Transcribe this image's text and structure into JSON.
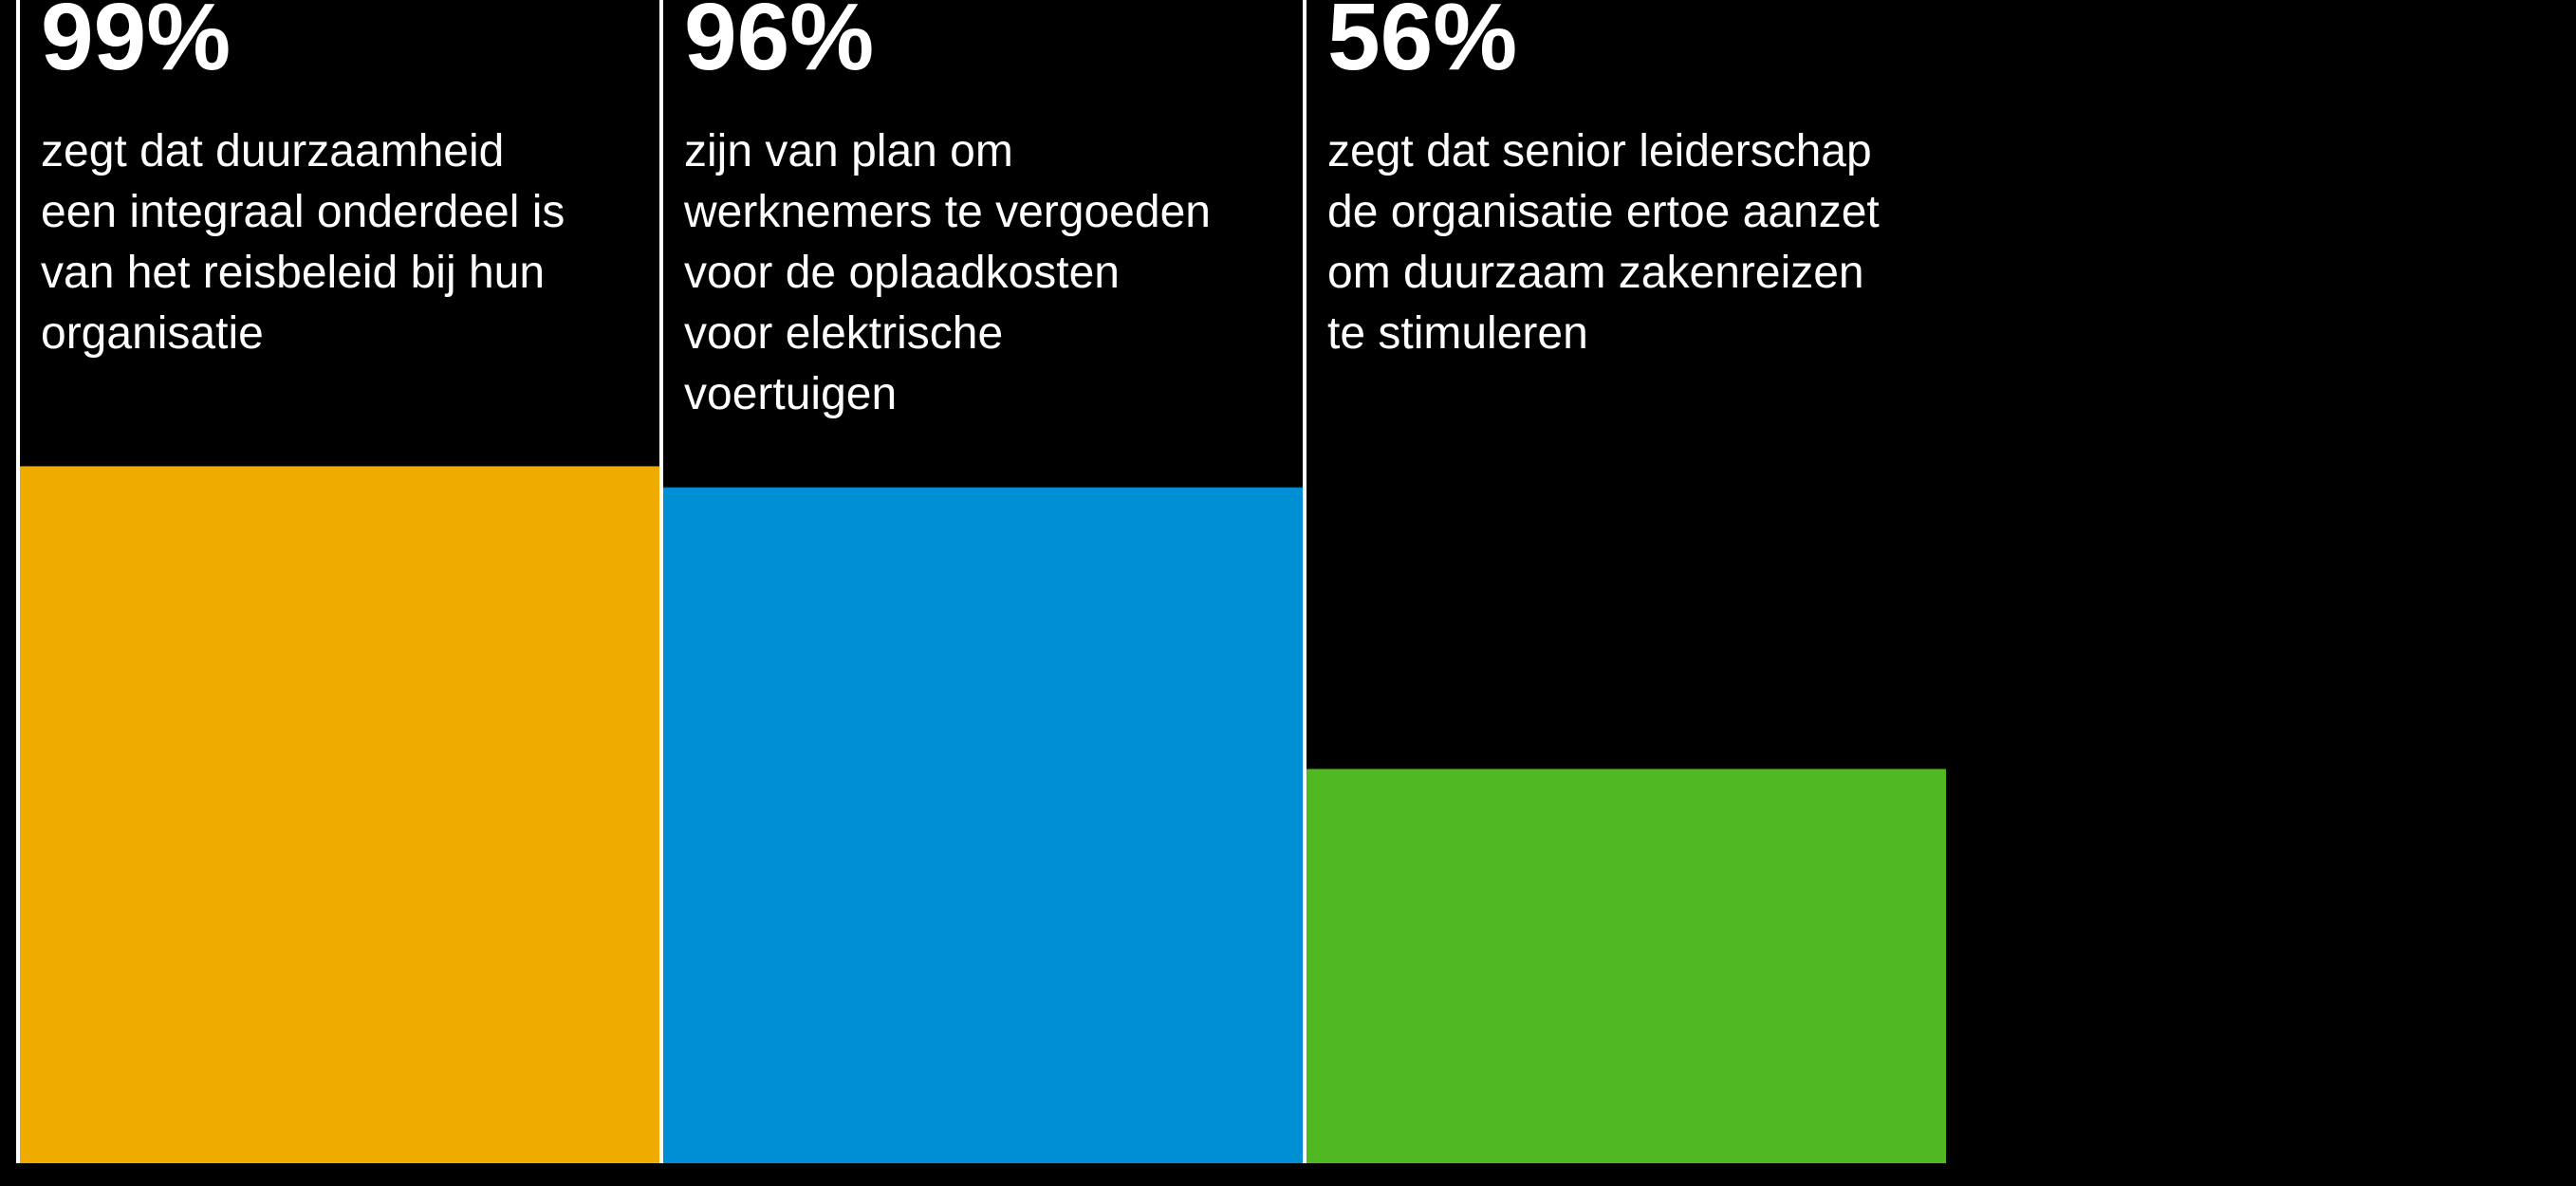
{
  "chart_data": {
    "type": "bar",
    "values": [
      99,
      96,
      56
    ],
    "value_labels": [
      "99%",
      "96%",
      "56%"
    ],
    "descriptions": [
      [
        "zegt dat duurzaamheid",
        "een integraal onderdeel is",
        "van het reisbeleid bij hun",
        "organisatie"
      ],
      [
        "zijn van plan om",
        "werknemers te vergoeden",
        "voor de oplaadkosten",
        "voor elektrische",
        "voertuigen"
      ],
      [
        "zegt dat senior leiderschap",
        "de organisatie ertoe aanzet",
        "om duurzaam zakenreizen",
        "te stimuleren"
      ]
    ],
    "colors": [
      "#f0ab00",
      "#008fd5",
      "#50b820"
    ],
    "ylim": [
      0,
      100
    ]
  }
}
